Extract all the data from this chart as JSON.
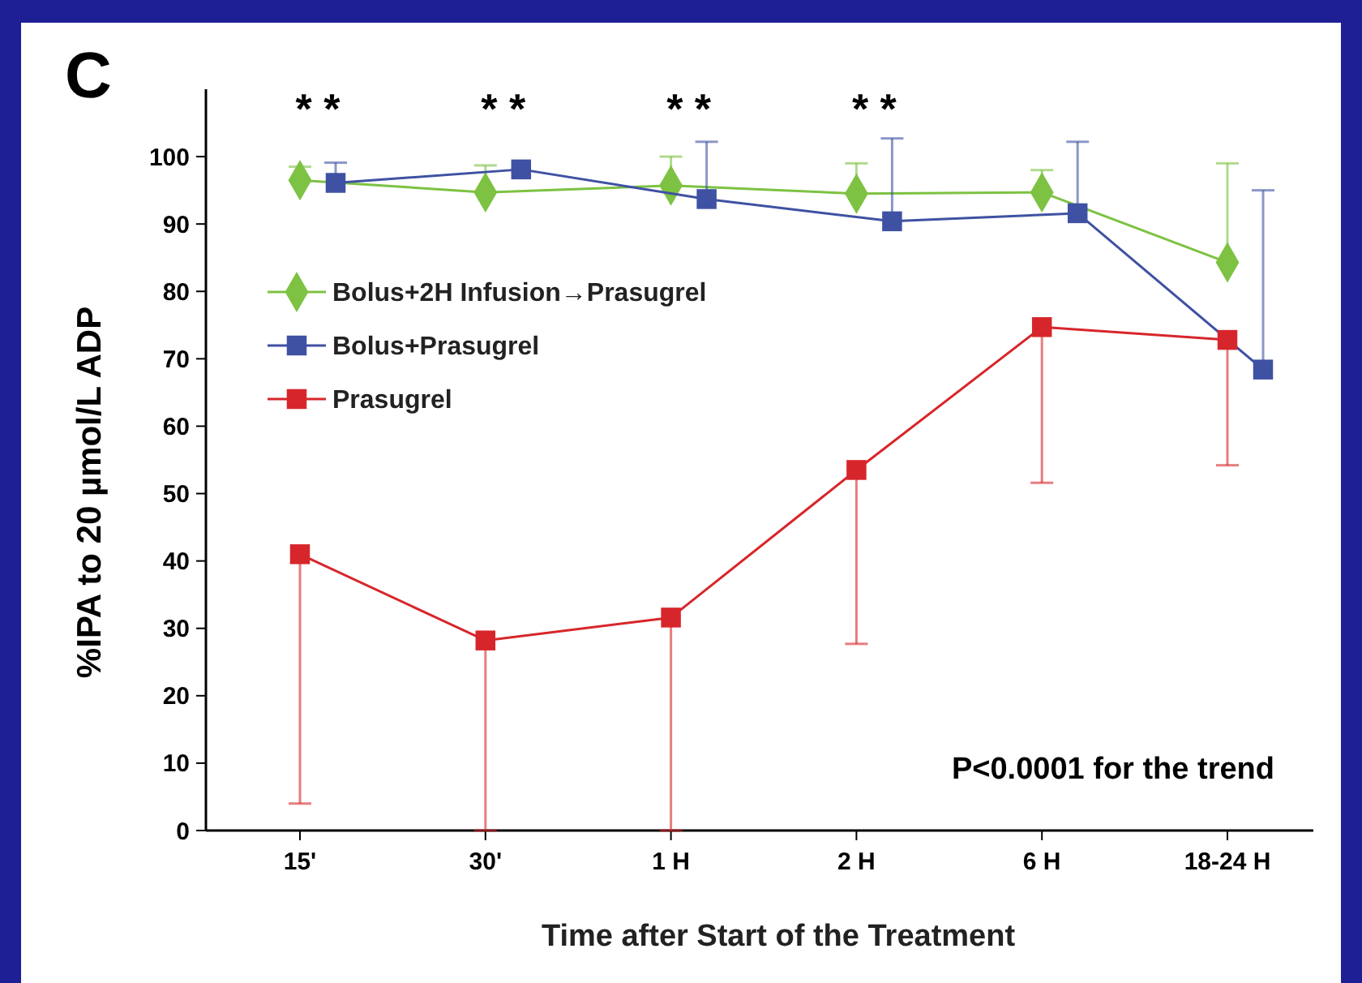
{
  "chart_data": {
    "type": "line",
    "title": "C",
    "xlabel": "Time after Start of the Treatment",
    "ylabel": "%IPA to 20 µmol/L ADP",
    "categories": [
      "15'",
      "30'",
      "1 H",
      "2 H",
      "6 H",
      "18-24 H"
    ],
    "series": [
      {
        "name": "Bolus+2H Infusion→Prasugrel",
        "color": "#7dc242",
        "marker": "diamond",
        "values": [
          96.5,
          94.7,
          95.7,
          94.5,
          94.7,
          84.3
        ],
        "errors": [
          [
            96.5,
            98.5
          ],
          [
            94.7,
            98.7
          ],
          [
            95.7,
            100
          ],
          [
            94.5,
            99
          ],
          [
            94.7,
            98
          ],
          [
            84.3,
            99
          ]
        ]
      },
      {
        "name": "Bolus+Prasugrel",
        "color": "#3f51a3",
        "marker": "square",
        "values": [
          96.1,
          98.1,
          93.7,
          90.4,
          91.6,
          68.4
        ],
        "errors": [
          [
            96.1,
            99.1
          ],
          null,
          [
            93.7,
            102.2
          ],
          [
            90.4,
            102.7
          ],
          [
            91.6,
            102.2
          ],
          [
            68.4,
            95
          ]
        ]
      },
      {
        "name": "Prasugrel",
        "color": "#d7262b",
        "marker": "square",
        "values": [
          41,
          28.2,
          31.6,
          53.5,
          74.7,
          72.8
        ],
        "errors": [
          [
            4,
            41
          ],
          [
            0,
            28.2
          ],
          [
            0,
            31.6
          ],
          [
            27.7,
            53.5
          ],
          [
            51.6,
            74.7
          ],
          [
            54.2,
            72.8
          ]
        ]
      }
    ],
    "ylim": [
      0,
      110
    ],
    "yticks": [
      0,
      10,
      20,
      30,
      40,
      50,
      60,
      70,
      80,
      90,
      100
    ],
    "grid": false,
    "legend": "top left",
    "annotations": [
      "* *",
      "* *",
      "* *",
      "* *",
      "P<0.0001 for the trend"
    ]
  }
}
